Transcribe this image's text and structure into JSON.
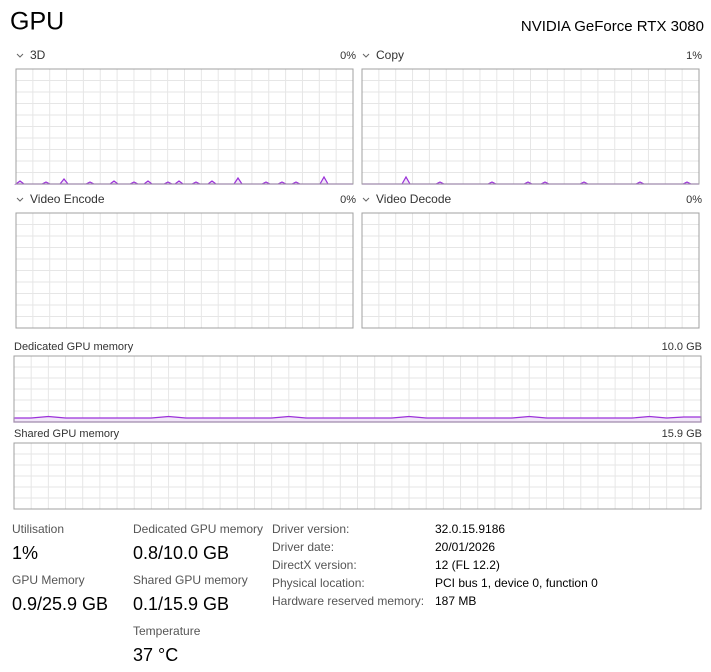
{
  "header": {
    "title": "GPU",
    "device": "NVIDIA GeForce RTX 3080"
  },
  "graphs": [
    {
      "label": "3D",
      "value": "0%"
    },
    {
      "label": "Copy",
      "value": "1%"
    },
    {
      "label": "Video Encode",
      "value": "0%"
    },
    {
      "label": "Video Decode",
      "value": "0%"
    }
  ],
  "memory_graphs": [
    {
      "label": "Dedicated GPU memory",
      "max": "10.0 GB"
    },
    {
      "label": "Shared GPU memory",
      "max": "15.9 GB"
    }
  ],
  "stats": [
    {
      "label": "Utilisation",
      "value": "1%"
    },
    {
      "label": "GPU Memory",
      "value": "0.9/25.9 GB"
    },
    {
      "label": "Dedicated GPU memory",
      "value": "0.8/10.0 GB"
    },
    {
      "label": "Shared GPU memory",
      "value": "0.1/15.9 GB"
    },
    {
      "label": "Temperature",
      "value": "37 °C"
    }
  ],
  "details": [
    {
      "label": "Driver version:",
      "value": "32.0.15.9186"
    },
    {
      "label": "Driver date:",
      "value": "20/01/2026"
    },
    {
      "label": "DirectX version:",
      "value": "12 (FL 12.2)"
    },
    {
      "label": "Physical location:",
      "value": "PCI bus 1, device 0, function 0"
    },
    {
      "label": "Hardware reserved memory:",
      "value": "187 MB"
    }
  ]
}
